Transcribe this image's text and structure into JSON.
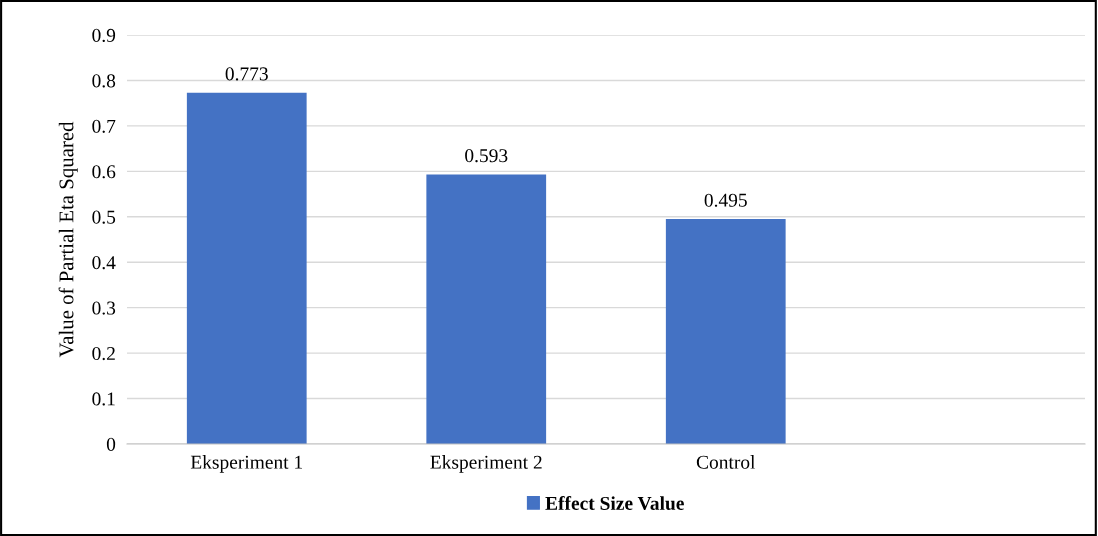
{
  "chart_data": {
    "type": "bar",
    "ylabel": "Value of Partial Eta Squared",
    "categories": [
      "Eksperiment 1",
      "Eksperiment 2",
      "Control",
      null
    ],
    "series": [
      {
        "name": "Effect Size Value",
        "color": "#4472c4",
        "values": [
          0.773,
          0.593,
          0.495,
          null
        ]
      }
    ],
    "ylim": [
      0,
      0.9
    ],
    "yticks": [
      0,
      0.1,
      0.2,
      0.3,
      0.4,
      0.5,
      0.6,
      0.7,
      0.8,
      0.9
    ],
    "grid": "y",
    "legend": "bottom",
    "data_labels": true
  }
}
